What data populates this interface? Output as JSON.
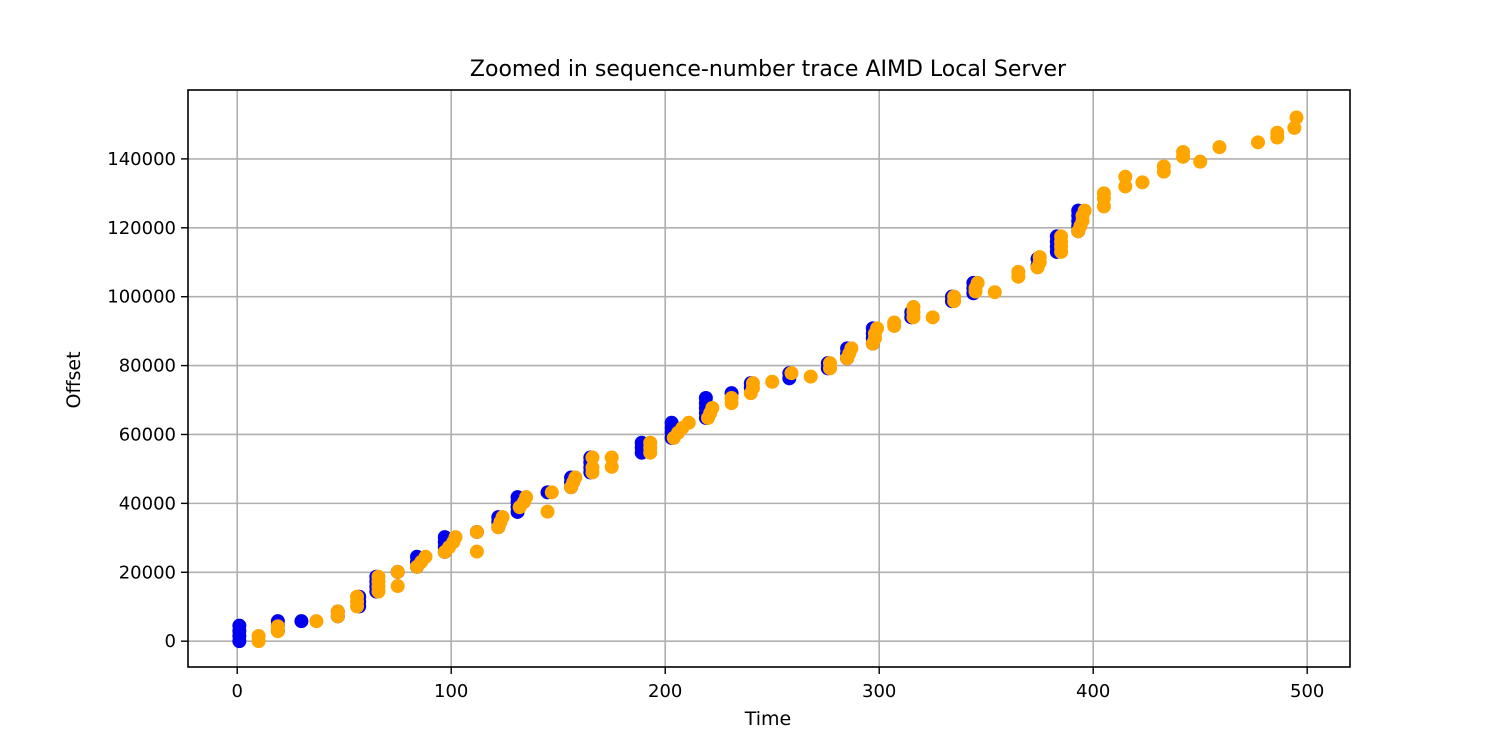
{
  "chart_data": {
    "type": "scatter",
    "title": "Zoomed in sequence-number trace AIMD Local Server",
    "xlabel": "Time",
    "ylabel": "Offset",
    "xlim": [
      -23,
      520
    ],
    "ylim": [
      -7500,
      160000
    ],
    "xticks": [
      0,
      100,
      200,
      300,
      400,
      500
    ],
    "yticks": [
      0,
      20000,
      40000,
      60000,
      80000,
      100000,
      120000,
      140000
    ],
    "grid": true,
    "colors": {
      "blue": "#0000ee",
      "orange": "#ffa500"
    },
    "series": [
      {
        "color": "blue",
        "points": [
          [
            1,
            0
          ],
          [
            1,
            1500
          ],
          [
            1,
            3000
          ],
          [
            1,
            4500
          ],
          [
            19,
            3000
          ],
          [
            19,
            4500
          ],
          [
            19,
            5800
          ],
          [
            30,
            5800
          ],
          [
            47,
            7200
          ],
          [
            47,
            8600
          ],
          [
            57,
            10100
          ],
          [
            57,
            11500
          ],
          [
            57,
            12900
          ],
          [
            65,
            14400
          ],
          [
            65,
            15800
          ],
          [
            65,
            17300
          ],
          [
            65,
            18700
          ],
          [
            75,
            20100
          ],
          [
            84,
            21600
          ],
          [
            84,
            23000
          ],
          [
            84,
            24500
          ],
          [
            97,
            25900
          ],
          [
            97,
            27300
          ],
          [
            97,
            28800
          ],
          [
            97,
            30200
          ],
          [
            112,
            31700
          ],
          [
            122,
            33100
          ],
          [
            122,
            34600
          ],
          [
            122,
            36000
          ],
          [
            131,
            37500
          ],
          [
            131,
            38900
          ],
          [
            131,
            40400
          ],
          [
            131,
            41800
          ],
          [
            145,
            43200
          ],
          [
            156,
            44700
          ],
          [
            156,
            46100
          ],
          [
            156,
            47500
          ],
          [
            165,
            49000
          ],
          [
            165,
            50400
          ],
          [
            165,
            51900
          ],
          [
            165,
            53300
          ],
          [
            189,
            54700
          ],
          [
            189,
            56200
          ],
          [
            189,
            57600
          ],
          [
            203,
            59000
          ],
          [
            203,
            60500
          ],
          [
            203,
            61900
          ],
          [
            203,
            63400
          ],
          [
            219,
            64800
          ],
          [
            219,
            66200
          ],
          [
            219,
            67700
          ],
          [
            219,
            69100
          ],
          [
            219,
            70600
          ],
          [
            231,
            72000
          ],
          [
            240,
            73500
          ],
          [
            240,
            74900
          ],
          [
            258,
            76300
          ],
          [
            258,
            77800
          ],
          [
            276,
            79200
          ],
          [
            276,
            80700
          ],
          [
            285,
            82100
          ],
          [
            285,
            83500
          ],
          [
            285,
            85000
          ],
          [
            297,
            86400
          ],
          [
            297,
            87900
          ],
          [
            297,
            89300
          ],
          [
            297,
            90800
          ],
          [
            315,
            94000
          ],
          [
            315,
            95500
          ],
          [
            334,
            98700
          ],
          [
            334,
            100000
          ],
          [
            344,
            101000
          ],
          [
            344,
            102500
          ],
          [
            344,
            104000
          ],
          [
            374,
            109000
          ],
          [
            374,
            111000
          ],
          [
            383,
            113000
          ],
          [
            383,
            114500
          ],
          [
            383,
            116000
          ],
          [
            383,
            117500
          ],
          [
            393,
            119000
          ],
          [
            393,
            120500
          ],
          [
            393,
            122000
          ],
          [
            393,
            123500
          ],
          [
            393,
            125000
          ]
        ]
      },
      {
        "color": "orange",
        "points": [
          [
            10,
            0
          ],
          [
            10,
            1500
          ],
          [
            19,
            2900
          ],
          [
            19,
            4300
          ],
          [
            37,
            5800
          ],
          [
            47,
            7200
          ],
          [
            47,
            8600
          ],
          [
            56,
            10100
          ],
          [
            56,
            11500
          ],
          [
            56,
            12900
          ],
          [
            66,
            14400
          ],
          [
            66,
            15800
          ],
          [
            66,
            17300
          ],
          [
            66,
            18700
          ],
          [
            75,
            16000
          ],
          [
            75,
            20100
          ],
          [
            84,
            21600
          ],
          [
            86,
            23000
          ],
          [
            88,
            24500
          ],
          [
            97,
            25900
          ],
          [
            99,
            27300
          ],
          [
            101,
            28800
          ],
          [
            102,
            30200
          ],
          [
            112,
            26000
          ],
          [
            112,
            31700
          ],
          [
            122,
            33100
          ],
          [
            123,
            34600
          ],
          [
            124,
            36000
          ],
          [
            132,
            38900
          ],
          [
            134,
            40400
          ],
          [
            135,
            41800
          ],
          [
            145,
            37600
          ],
          [
            147,
            43200
          ],
          [
            156,
            44700
          ],
          [
            157,
            46100
          ],
          [
            158,
            47500
          ],
          [
            166,
            49000
          ],
          [
            166,
            50400
          ],
          [
            166,
            53300
          ],
          [
            175,
            50600
          ],
          [
            175,
            53300
          ],
          [
            193,
            54700
          ],
          [
            193,
            56200
          ],
          [
            193,
            57600
          ],
          [
            204,
            59000
          ],
          [
            206,
            60500
          ],
          [
            208,
            61900
          ],
          [
            211,
            63400
          ],
          [
            220,
            64800
          ],
          [
            221,
            66200
          ],
          [
            222,
            67700
          ],
          [
            231,
            69100
          ],
          [
            231,
            70600
          ],
          [
            240,
            72000
          ],
          [
            241,
            73500
          ],
          [
            241,
            74900
          ],
          [
            250,
            75300
          ],
          [
            259,
            77800
          ],
          [
            268,
            76800
          ],
          [
            277,
            79200
          ],
          [
            277,
            80700
          ],
          [
            285,
            82100
          ],
          [
            286,
            83500
          ],
          [
            287,
            85000
          ],
          [
            297,
            86400
          ],
          [
            298,
            87900
          ],
          [
            298,
            89300
          ],
          [
            299,
            90800
          ],
          [
            307,
            91500
          ],
          [
            307,
            92500
          ],
          [
            316,
            94000
          ],
          [
            316,
            95500
          ],
          [
            316,
            97000
          ],
          [
            325,
            94000
          ],
          [
            335,
            98700
          ],
          [
            335,
            100000
          ],
          [
            345,
            101500
          ],
          [
            345,
            102500
          ],
          [
            346,
            104000
          ],
          [
            354,
            101300
          ],
          [
            365,
            105800
          ],
          [
            365,
            107200
          ],
          [
            374,
            108500
          ],
          [
            375,
            110000
          ],
          [
            375,
            111500
          ],
          [
            385,
            113000
          ],
          [
            385,
            114500
          ],
          [
            385,
            116000
          ],
          [
            385,
            117500
          ],
          [
            393,
            119000
          ],
          [
            394,
            120500
          ],
          [
            395,
            122000
          ],
          [
            395,
            123500
          ],
          [
            396,
            125000
          ],
          [
            405,
            126200
          ],
          [
            405,
            128500
          ],
          [
            405,
            130000
          ],
          [
            415,
            132000
          ],
          [
            415,
            134800
          ],
          [
            423,
            133200
          ],
          [
            433,
            136300
          ],
          [
            433,
            137800
          ],
          [
            442,
            140600
          ],
          [
            442,
            142000
          ],
          [
            450,
            139200
          ],
          [
            459,
            143400
          ],
          [
            477,
            144800
          ],
          [
            486,
            146200
          ],
          [
            486,
            147600
          ],
          [
            494,
            149000
          ],
          [
            495,
            152000
          ]
        ]
      }
    ]
  }
}
